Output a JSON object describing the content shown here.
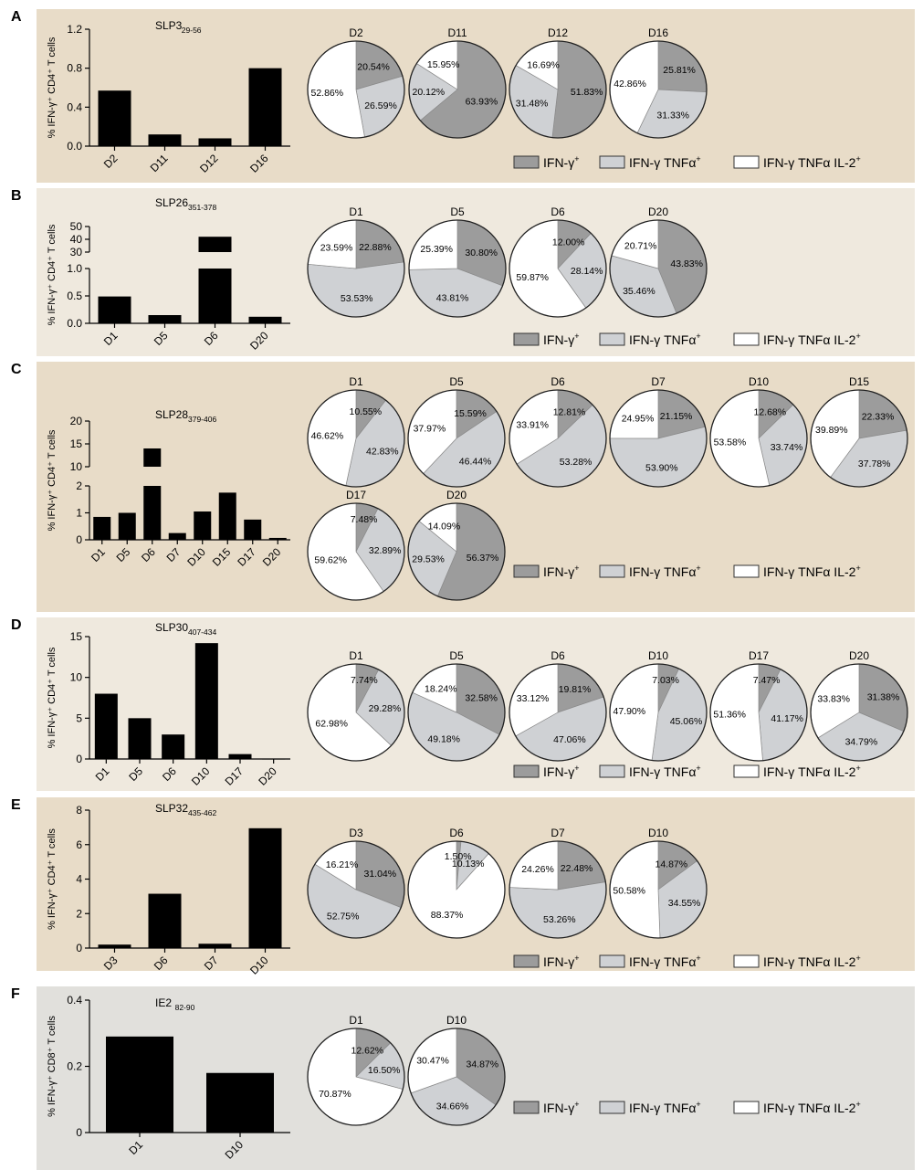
{
  "legend": {
    "gamma_label": "IFN-γ",
    "tnf_label": "IFN-γ TNFα",
    "il2_label": "IFN-γ TNFα IL-2"
  },
  "colors": {
    "ifn": "#9c9c9c",
    "tnf": "#cfd1d4",
    "il2": "#ffffff",
    "bar": "#000000",
    "panel_dark": "#e8dcc8",
    "panel_light": "#efe9de",
    "panel_gray": "#e1e0dc"
  },
  "chart_data": [
    {
      "panel": "A",
      "type": "bar",
      "peptide": "SLP3",
      "peptide_sub": "29-56",
      "ylabel": "% IFN-γ⁺ CD4⁺ T cells",
      "categories": [
        "D2",
        "D11",
        "D12",
        "D16"
      ],
      "values": [
        0.57,
        0.12,
        0.08,
        0.8
      ],
      "ylim": [
        0,
        1.2
      ],
      "yticks": [
        "0.0",
        "0.4",
        "0.8",
        "1.2"
      ],
      "pies": [
        {
          "donor": "D2",
          "ifn": 20.54,
          "tnf": 26.59,
          "il2": 52.86,
          "ifn_label": "20.54%",
          "tnf_label": "26.59%",
          "il2_label": "52.86%"
        },
        {
          "donor": "D11",
          "ifn": 63.93,
          "tnf": 20.12,
          "il2": 15.95,
          "ifn_label": "63.93%",
          "tnf_label": "20.12%",
          "il2_label": "15.95%"
        },
        {
          "donor": "D12",
          "ifn": 51.83,
          "tnf": 31.48,
          "il2": 16.69,
          "ifn_label": "51.83%",
          "tnf_label": "31.48%",
          "il2_label": "16.69%"
        },
        {
          "donor": "D16",
          "ifn": 25.81,
          "tnf": 31.33,
          "il2": 42.86,
          "ifn_label": "25.81%",
          "tnf_label": "31.33%",
          "il2_label": "42.86%"
        }
      ]
    },
    {
      "panel": "B",
      "type": "bar",
      "peptide": "SLP26",
      "peptide_sub": "351-378",
      "ylabel": "% IFN-γ⁺ CD4⁺ T cells",
      "categories": [
        "D1",
        "D5",
        "D6",
        "D20"
      ],
      "values": [
        0.49,
        0.15,
        42.0,
        0.12
      ],
      "ylim": [
        0,
        50
      ],
      "yticks": [
        "0.0",
        "0.5",
        "1.0",
        "30",
        "40",
        "50"
      ],
      "broken_axis": {
        "lower": [
          0,
          1.0
        ],
        "upper": [
          30,
          50
        ]
      },
      "pies": [
        {
          "donor": "D1",
          "ifn": 22.88,
          "tnf": 53.53,
          "il2": 23.59,
          "ifn_label": "22.88%",
          "tnf_label": "53.53%",
          "il2_label": "23.59%"
        },
        {
          "donor": "D5",
          "ifn": 30.8,
          "tnf": 43.81,
          "il2": 25.39,
          "ifn_label": "30.80%",
          "tnf_label": "43.81%",
          "il2_label": "25.39%"
        },
        {
          "donor": "D6",
          "ifn": 12.0,
          "tnf": 28.14,
          "il2": 59.87,
          "ifn_label": "12.00%",
          "tnf_label": "28.14%",
          "il2_label": "59.87%"
        },
        {
          "donor": "D20",
          "ifn": 43.83,
          "tnf": 35.46,
          "il2": 20.71,
          "ifn_label": "43.83%",
          "tnf_label": "35.46%",
          "il2_label": "20.71%"
        }
      ]
    },
    {
      "panel": "C",
      "type": "bar",
      "peptide": "SLP28",
      "peptide_sub": "379-406",
      "ylabel": "% IFN-γ⁺ CD4⁺ T cells",
      "categories": [
        "D1",
        "D5",
        "D6",
        "D7",
        "D10",
        "D15",
        "D17",
        "D20"
      ],
      "values": [
        0.85,
        1.0,
        14.0,
        0.25,
        1.05,
        1.75,
        0.75,
        0.07
      ],
      "ylim": [
        0,
        20
      ],
      "yticks": [
        "0",
        "1",
        "2",
        "10",
        "15",
        "20"
      ],
      "broken_axis": {
        "lower": [
          0,
          2
        ],
        "upper": [
          10,
          20
        ]
      },
      "pies": [
        {
          "donor": "D1",
          "ifn": 10.55,
          "tnf": 42.83,
          "il2": 46.62,
          "ifn_label": "10.55%",
          "tnf_label": "42.83%",
          "il2_label": "46.62%"
        },
        {
          "donor": "D5",
          "ifn": 15.59,
          "tnf": 46.44,
          "il2": 37.97,
          "ifn_label": "15.59%",
          "tnf_label": "46.44%",
          "il2_label": "37.97%"
        },
        {
          "donor": "D6",
          "ifn": 12.81,
          "tnf": 53.28,
          "il2": 33.91,
          "ifn_label": "12.81%",
          "tnf_label": "53.28%",
          "il2_label": "33.91%"
        },
        {
          "donor": "D7",
          "ifn": 21.15,
          "tnf": 53.9,
          "il2": 24.95,
          "ifn_label": "21.15%",
          "tnf_label": "53.90%",
          "il2_label": "24.95%"
        },
        {
          "donor": "D10",
          "ifn": 12.68,
          "tnf": 33.74,
          "il2": 53.58,
          "ifn_label": "12.68%",
          "tnf_label": "33.74%",
          "il2_label": "53.58%"
        },
        {
          "donor": "D15",
          "ifn": 22.33,
          "tnf": 37.78,
          "il2": 39.89,
          "ifn_label": "22.33%",
          "tnf_label": "37.78%",
          "il2_label": "39.89%"
        },
        {
          "donor": "D17",
          "ifn": 7.48,
          "tnf": 32.89,
          "il2": 59.62,
          "ifn_label": "7.48%",
          "tnf_label": "32.89%",
          "il2_label": "59.62%"
        },
        {
          "donor": "D20",
          "ifn": 56.37,
          "tnf": 29.53,
          "il2": 14.09,
          "ifn_label": "56.37%",
          "tnf_label": "29.53%",
          "il2_label": "14.09%"
        }
      ]
    },
    {
      "panel": "D",
      "type": "bar",
      "peptide": "SLP30",
      "peptide_sub": "407-434",
      "ylabel": "% IFN-γ⁺ CD4⁺ T cells",
      "categories": [
        "D1",
        "D5",
        "D6",
        "D10",
        "D17",
        "D20"
      ],
      "values": [
        8.0,
        5.0,
        3.0,
        14.2,
        0.6,
        0.05
      ],
      "ylim": [
        0,
        15
      ],
      "yticks": [
        "0",
        "5",
        "10",
        "15"
      ],
      "pies": [
        {
          "donor": "D1",
          "ifn": 7.74,
          "tnf": 29.28,
          "il2": 62.98,
          "ifn_label": "7.74%",
          "tnf_label": "29.28%",
          "il2_label": "62.98%"
        },
        {
          "donor": "D5",
          "ifn": 32.58,
          "tnf": 49.18,
          "il2": 18.24,
          "ifn_label": "32.58%",
          "tnf_label": "49.18%",
          "il2_label": "18.24%"
        },
        {
          "donor": "D6",
          "ifn": 19.81,
          "tnf": 47.06,
          "il2": 33.12,
          "ifn_label": "19.81%",
          "tnf_label": "47.06%",
          "il2_label": "33.12%"
        },
        {
          "donor": "D10",
          "ifn": 7.03,
          "tnf": 45.06,
          "il2": 47.9,
          "ifn_label": "7.03%",
          "tnf_label": "45.06%",
          "il2_label": "47.90%"
        },
        {
          "donor": "D17",
          "ifn": 7.47,
          "tnf": 41.17,
          "il2": 51.36,
          "ifn_label": "7.47%",
          "tnf_label": "41.17%",
          "il2_label": "51.36%"
        },
        {
          "donor": "D20",
          "ifn": 31.38,
          "tnf": 34.79,
          "il2": 33.83,
          "ifn_label": "31.38%",
          "tnf_label": "34.79%",
          "il2_label": "33.83%"
        }
      ]
    },
    {
      "panel": "E",
      "type": "bar",
      "peptide": "SLP32",
      "peptide_sub": "435-462",
      "ylabel": "% IFN-γ⁺ CD4⁺ T cells",
      "categories": [
        "D3",
        "D6",
        "D7",
        "D10"
      ],
      "values": [
        0.2,
        3.15,
        0.25,
        6.95
      ],
      "ylim": [
        0,
        8
      ],
      "yticks": [
        "0",
        "2",
        "4",
        "6",
        "8"
      ],
      "pies": [
        {
          "donor": "D3",
          "ifn": 31.04,
          "tnf": 52.75,
          "il2": 16.21,
          "ifn_label": "31.04%",
          "tnf_label": "52.75%",
          "il2_label": "16.21%"
        },
        {
          "donor": "D6",
          "ifn": 1.5,
          "tnf": 10.13,
          "il2": 88.37,
          "ifn_label": "1.50%",
          "tnf_label": "10.13%",
          "il2_label": "88.37%"
        },
        {
          "donor": "D7",
          "ifn": 22.48,
          "tnf": 53.26,
          "il2": 24.26,
          "ifn_label": "22.48%",
          "tnf_label": "53.26%",
          "il2_label": "24.26%"
        },
        {
          "donor": "D10",
          "ifn": 14.87,
          "tnf": 34.55,
          "il2": 50.58,
          "ifn_label": "14.87%",
          "tnf_label": "34.55%",
          "il2_label": "50.58%"
        }
      ]
    },
    {
      "panel": "F",
      "type": "bar",
      "peptide": "IE2",
      "peptide_sub": "82-90",
      "ylabel": "% IFN-γ⁺ CD8⁺ T cells",
      "categories": [
        "D1",
        "D10"
      ],
      "values": [
        0.29,
        0.18
      ],
      "ylim": [
        0,
        0.4
      ],
      "yticks": [
        "0",
        "0.2",
        "0.4"
      ],
      "pies": [
        {
          "donor": "D1",
          "ifn": 12.62,
          "tnf": 16.5,
          "il2": 70.87,
          "ifn_label": "12.62%",
          "tnf_label": "16.50%",
          "il2_label": "70.87%"
        },
        {
          "donor": "D10",
          "ifn": 34.87,
          "tnf": 34.66,
          "il2": 30.47,
          "ifn_label": "34.87%",
          "tnf_label": "34.66%",
          "il2_label": "30.47%"
        }
      ]
    }
  ]
}
